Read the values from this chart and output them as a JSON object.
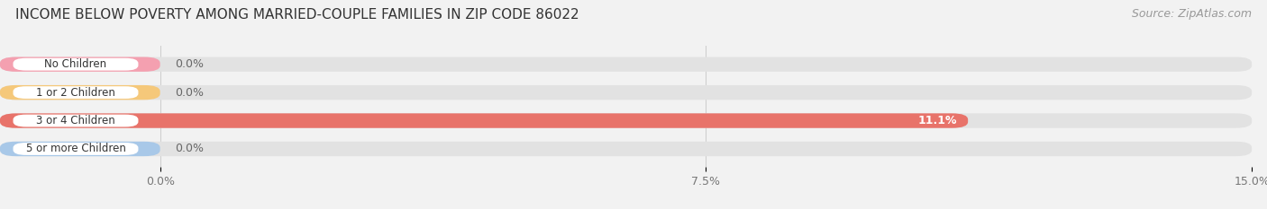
{
  "title": "INCOME BELOW POVERTY AMONG MARRIED-COUPLE FAMILIES IN ZIP CODE 86022",
  "source": "Source: ZipAtlas.com",
  "categories": [
    "No Children",
    "1 or 2 Children",
    "3 or 4 Children",
    "5 or more Children"
  ],
  "values": [
    0.0,
    0.0,
    11.1,
    0.0
  ],
  "bar_colors": [
    "#f4a0b0",
    "#f5c87a",
    "#e8736a",
    "#a8c8e8"
  ],
  "value_labels": [
    "0.0%",
    "0.0%",
    "11.1%",
    "0.0%"
  ],
  "xlim": [
    0,
    15.0
  ],
  "xticks": [
    0.0,
    7.5,
    15.0
  ],
  "xtick_labels": [
    "0.0%",
    "7.5%",
    "15.0%"
  ],
  "background_color": "#f2f2f2",
  "bar_background_color": "#e2e2e2",
  "label_bg_color": "#ffffff",
  "title_fontsize": 11,
  "source_fontsize": 9,
  "tick_fontsize": 9,
  "bar_label_fontsize": 8.5,
  "value_label_fontsize": 9
}
